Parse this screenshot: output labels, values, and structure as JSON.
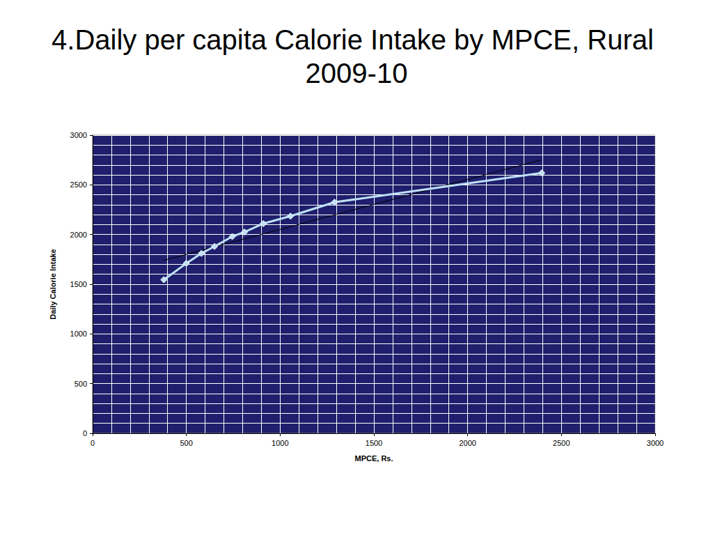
{
  "chart_data": {
    "type": "line",
    "title": "4.Daily per capita Calorie Intake by MPCE, Rural 2009-10",
    "x_label": "MPCE, Rs.",
    "y_label": "Daily Calorie Intake",
    "series": [
      {
        "color": "#bfe1f7",
        "marker": "diamond",
        "line_style": "solid",
        "x": [
          380,
          500,
          580,
          650,
          745,
          810,
          910,
          1055,
          1290,
          2395
        ],
        "values": [
          1545,
          1710,
          1810,
          1880,
          1980,
          2025,
          2110,
          2185,
          2325,
          2620
        ]
      },
      {
        "color": "#000000",
        "marker": "none",
        "line_style": "solid",
        "x": [
          380,
          2390
        ],
        "values": [
          1740,
          2750
        ]
      }
    ],
    "xlim": [
      0,
      3000
    ],
    "xticks": [
      0,
      500,
      1000,
      1500,
      2000,
      2500,
      3000
    ],
    "ylim": [
      0,
      3000
    ],
    "yticks": [
      0,
      500,
      1000,
      1500,
      2000,
      2500,
      3000
    ],
    "grid": true
  }
}
